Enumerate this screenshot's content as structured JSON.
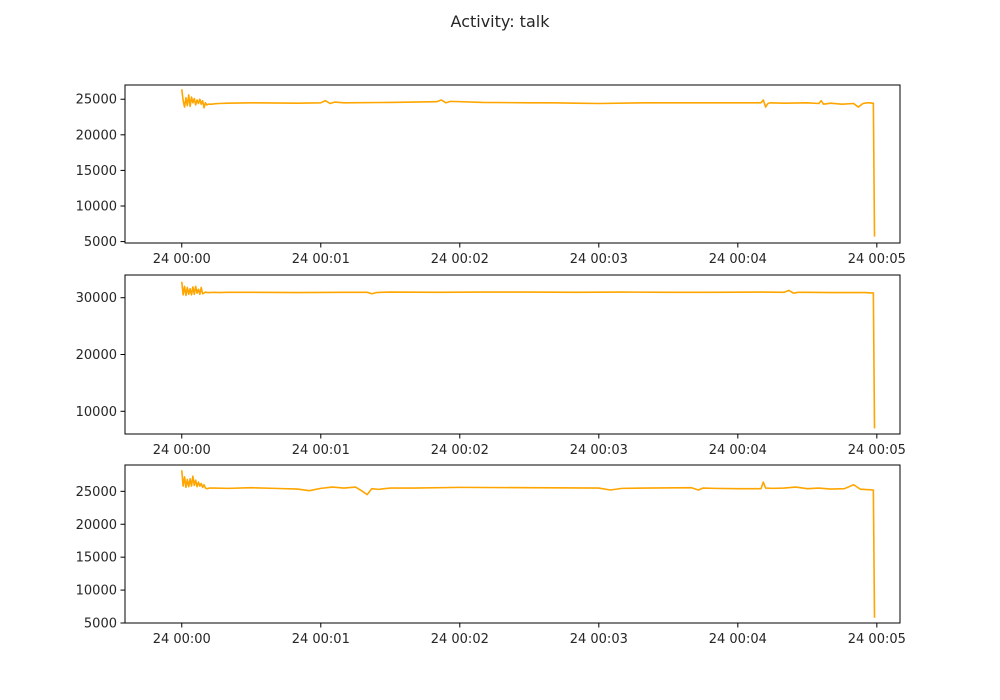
{
  "figure": {
    "suptitle": "Activity: talk",
    "background": "#ffffff",
    "line_color": "#ffa500"
  },
  "chart_data": [
    {
      "type": "line",
      "title": "",
      "xlabel": "",
      "ylabel": "",
      "xlim_seconds": [
        -24.5,
        310
      ],
      "ylim": [
        4800,
        27000
      ],
      "grid": false,
      "xticks": [
        "24 00:00",
        "24 00:01",
        "24 00:02",
        "24 00:03",
        "24 00:04",
        "24 00:05"
      ],
      "yticks": [
        5000,
        10000,
        15000,
        20000,
        25000
      ],
      "series": [
        {
          "color": "#ffa500",
          "x_seconds": [
            0,
            0.6,
            1.2,
            1.8,
            2.4,
            3,
            3.6,
            4.2,
            4.8,
            5.4,
            6,
            6.6,
            7.2,
            7.8,
            8.4,
            9,
            9.6,
            10.2,
            10.8,
            11.4,
            12,
            13,
            14,
            16,
            20,
            30,
            50,
            60,
            62,
            64,
            66,
            70,
            90,
            110,
            112,
            114,
            116,
            130,
            150,
            160,
            170,
            180,
            200,
            240,
            250,
            251,
            252,
            253,
            254,
            260,
            270,
            275,
            276,
            277,
            280,
            285,
            290,
            292,
            294,
            296,
            297,
            298,
            298.5,
            299
          ],
          "y": [
            26400,
            24800,
            23900,
            25200,
            24100,
            25600,
            24000,
            25300,
            24500,
            25100,
            24200,
            24900,
            24400,
            25000,
            24300,
            24800,
            23800,
            24500,
            24200,
            24300,
            24300,
            24300,
            24350,
            24400,
            24450,
            24500,
            24450,
            24500,
            24800,
            24400,
            24600,
            24500,
            24550,
            24650,
            24900,
            24500,
            24700,
            24550,
            24500,
            24500,
            24450,
            24400,
            24500,
            24500,
            24500,
            24900,
            23900,
            24400,
            24500,
            24450,
            24500,
            24400,
            24800,
            24300,
            24450,
            24300,
            24400,
            23900,
            24400,
            24500,
            24500,
            24450,
            24450,
            5700
          ]
        }
      ]
    },
    {
      "type": "line",
      "title": "",
      "xlabel": "",
      "ylabel": "",
      "xlim_seconds": [
        -24.5,
        310
      ],
      "ylim": [
        6000,
        34000
      ],
      "grid": false,
      "xticks": [
        "24 00:00",
        "24 00:01",
        "24 00:02",
        "24 00:03",
        "24 00:04",
        "24 00:05"
      ],
      "yticks": [
        10000,
        20000,
        30000
      ],
      "series": [
        {
          "color": "#ffa500",
          "x_seconds": [
            0,
            0.6,
            1.2,
            1.8,
            2.4,
            3,
            3.6,
            4.2,
            4.8,
            5.4,
            6,
            6.6,
            7.2,
            7.8,
            8.4,
            9,
            9.6,
            10.2,
            11,
            12,
            14,
            16,
            20,
            30,
            50,
            70,
            80,
            82,
            84,
            86,
            90,
            110,
            130,
            150,
            170,
            190,
            210,
            230,
            250,
            260,
            262,
            264,
            266,
            270,
            280,
            290,
            295,
            297,
            298,
            298.5,
            299
          ],
          "y": [
            32800,
            30500,
            32000,
            30400,
            31800,
            30600,
            31600,
            30500,
            31900,
            30600,
            32000,
            30800,
            31500,
            30600,
            31800,
            30700,
            30800,
            31000,
            30900,
            30900,
            30950,
            30900,
            30950,
            30950,
            30900,
            30950,
            30950,
            30700,
            30900,
            30950,
            31000,
            30950,
            31000,
            31000,
            30950,
            31000,
            30950,
            30950,
            31000,
            30950,
            31300,
            30800,
            30950,
            30950,
            30900,
            30900,
            30900,
            30850,
            30850,
            30850,
            7000
          ]
        }
      ]
    },
    {
      "type": "line",
      "title": "",
      "xlabel": "",
      "ylabel": "",
      "xlim_seconds": [
        -24.5,
        310
      ],
      "ylim": [
        5000,
        29000
      ],
      "grid": false,
      "xticks": [
        "24 00:00",
        "24 00:01",
        "24 00:02",
        "24 00:03",
        "24 00:04",
        "24 00:05"
      ],
      "yticks": [
        5000,
        10000,
        15000,
        20000,
        25000
      ],
      "series": [
        {
          "color": "#ffa500",
          "x_seconds": [
            0,
            0.6,
            1.2,
            1.8,
            2.4,
            3,
            3.6,
            4.2,
            4.8,
            5.4,
            6,
            6.6,
            7.2,
            7.8,
            8.4,
            9,
            9.6,
            10.2,
            11,
            12,
            14,
            20,
            30,
            40,
            50,
            55,
            60,
            65,
            70,
            75,
            78,
            80,
            82,
            85,
            90,
            100,
            120,
            150,
            180,
            185,
            190,
            200,
            220,
            223,
            225,
            230,
            240,
            250,
            251,
            252,
            255,
            260,
            265,
            270,
            275,
            280,
            286,
            290,
            293,
            294,
            296,
            297,
            298,
            298.5,
            299
          ],
          "y": [
            28200,
            25800,
            27200,
            25600,
            26800,
            25700,
            26900,
            25800,
            27300,
            25900,
            26700,
            25700,
            26400,
            25800,
            26200,
            25600,
            26000,
            25500,
            25400,
            25500,
            25500,
            25450,
            25550,
            25450,
            25350,
            25100,
            25450,
            25650,
            25500,
            25650,
            25000,
            24500,
            25400,
            25300,
            25500,
            25500,
            25600,
            25550,
            25500,
            25200,
            25450,
            25500,
            25550,
            25200,
            25500,
            25450,
            25400,
            25400,
            26400,
            25500,
            25450,
            25500,
            25650,
            25400,
            25500,
            25350,
            25400,
            26000,
            25300,
            25300,
            25250,
            25250,
            25200,
            25200,
            5800
          ]
        }
      ]
    }
  ]
}
